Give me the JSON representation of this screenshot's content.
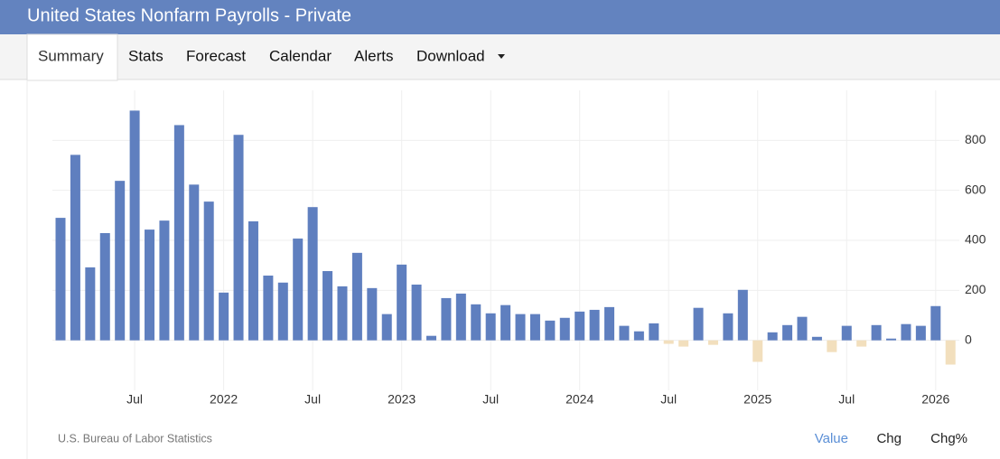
{
  "header": {
    "title": "United States Nonfarm Payrolls - Private"
  },
  "tabs": [
    "Summary",
    "Stats",
    "Forecast",
    "Calendar",
    "Alerts",
    "Download"
  ],
  "view_options": [
    "Value",
    "Chg",
    "Chg%"
  ],
  "chart_data": {
    "type": "bar",
    "source": "U.S. Bureau of Labor Statistics",
    "categories": [
      null,
      null,
      null,
      null,
      null,
      "Jul",
      null,
      null,
      null,
      null,
      null,
      "2022",
      null,
      null,
      null,
      null,
      null,
      "Jul",
      null,
      null,
      null,
      null,
      null,
      "2023",
      null,
      null,
      null,
      null,
      null,
      "Jul",
      null,
      null,
      null,
      null,
      null,
      "2024",
      null,
      null,
      null,
      null,
      null,
      "Jul",
      null,
      null,
      null,
      null,
      null,
      "2025",
      null,
      null,
      null,
      null,
      null,
      "Jul",
      null,
      null,
      null,
      null,
      null,
      "2026",
      null
    ],
    "values": [
      490,
      742,
      292,
      429,
      638,
      919,
      443,
      479,
      861,
      623,
      555,
      191,
      822,
      476,
      259,
      231,
      407,
      533,
      277,
      216,
      350,
      209,
      105,
      303,
      223,
      18,
      169,
      187,
      144,
      108,
      141,
      105,
      105,
      79,
      90,
      115,
      122,
      133,
      58,
      36,
      68,
      -14,
      -25,
      130,
      -18,
      108,
      202,
      -86,
      32,
      61,
      94,
      14,
      -47,
      58,
      -25,
      61,
      7,
      65,
      58,
      137,
      -97
    ],
    "color": "#5f7fbf",
    "negative_color": "#f2dfbd",
    "ylim": [
      -200,
      1000
    ],
    "yticks": [
      0,
      200,
      400,
      600,
      800
    ],
    "grid": true
  }
}
